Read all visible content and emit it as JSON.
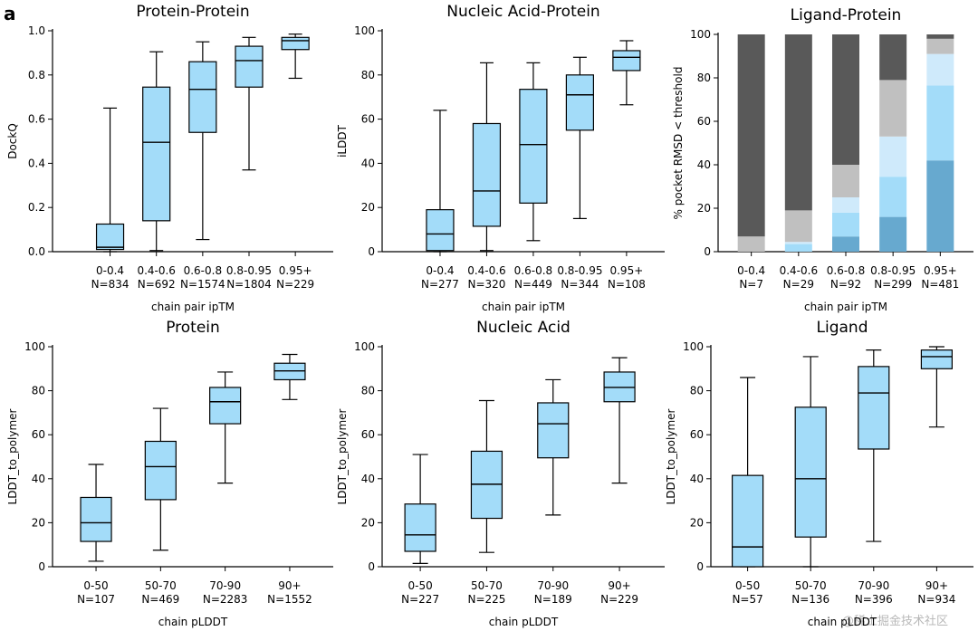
{
  "panel_label": "a",
  "watermark": "@稀土掘金技术社区",
  "colors": {
    "box_fill": "#a3dcf9",
    "edge": "#000000",
    "stack": [
      "#67a9cf",
      "#a3dcf9",
      "#cfeafb",
      "#c0c0c0",
      "#595959"
    ]
  },
  "chart_data": [
    {
      "type": "box",
      "title": "Protein-Protein",
      "xlabel": "chain pair ipTM",
      "ylabel": "DockQ",
      "ylim": [
        0,
        1
      ],
      "yticks": [
        "0.0",
        "0.2",
        "0.4",
        "0.6",
        "0.8",
        "1.0"
      ],
      "categories": [
        "0-0.4",
        "0.4-0.6",
        "0.6-0.8",
        "0.8-0.95",
        "0.95+"
      ],
      "counts": [
        "N=834",
        "N=692",
        "N=1574",
        "N=1804",
        "N=229"
      ],
      "boxes": [
        {
          "whislo": 0.0,
          "q1": 0.01,
          "med": 0.02,
          "q3": 0.125,
          "whishi": 0.65
        },
        {
          "whislo": 0.005,
          "q1": 0.14,
          "med": 0.495,
          "q3": 0.745,
          "whishi": 0.905
        },
        {
          "whislo": 0.055,
          "q1": 0.54,
          "med": 0.735,
          "q3": 0.86,
          "whishi": 0.95
        },
        {
          "whislo": 0.37,
          "q1": 0.745,
          "med": 0.865,
          "q3": 0.93,
          "whishi": 0.97
        },
        {
          "whislo": 0.785,
          "q1": 0.915,
          "med": 0.955,
          "q3": 0.97,
          "whishi": 0.985
        }
      ]
    },
    {
      "type": "box",
      "title": "Nucleic Acid-Protein",
      "xlabel": "chain pair ipTM",
      "ylabel": "iLDDT",
      "ylim": [
        0,
        100
      ],
      "yticks": [
        "0",
        "20",
        "40",
        "60",
        "80",
        "100"
      ],
      "categories": [
        "0-0.4",
        "0.4-0.6",
        "0.6-0.8",
        "0.8-0.95",
        "0.95+"
      ],
      "counts": [
        "N=277",
        "N=320",
        "N=449",
        "N=344",
        "N=108"
      ],
      "boxes": [
        {
          "whislo": 0,
          "q1": 0.5,
          "med": 8,
          "q3": 19,
          "whishi": 64
        },
        {
          "whislo": 0.5,
          "q1": 11.5,
          "med": 27.5,
          "q3": 58,
          "whishi": 85.5
        },
        {
          "whislo": 5,
          "q1": 22,
          "med": 48.5,
          "q3": 73.5,
          "whishi": 85.5
        },
        {
          "whislo": 15,
          "q1": 55,
          "med": 71,
          "q3": 80,
          "whishi": 88
        },
        {
          "whislo": 66.5,
          "q1": 82,
          "med": 88,
          "q3": 91,
          "whishi": 95.5
        }
      ]
    },
    {
      "type": "stacked_bar",
      "title": "Ligand-Protein",
      "xlabel": "chain pair ipTM",
      "ylabel": "% pocket RMSD < threshold",
      "ylim": [
        0,
        100
      ],
      "yticks": [
        "0",
        "20",
        "40",
        "60",
        "80",
        "100"
      ],
      "categories": [
        "0-0.4",
        "0.4-0.6",
        "0.6-0.8",
        "0.8-0.95",
        "0.95+"
      ],
      "counts": [
        "N=7",
        "N=29",
        "N=92",
        "N=299",
        "N=481"
      ],
      "segments": [
        [
          0,
          0,
          0,
          7,
          93
        ],
        [
          0,
          3.5,
          1,
          14.5,
          81
        ],
        [
          7,
          11,
          7,
          15,
          60
        ],
        [
          16,
          18.5,
          18.5,
          26,
          21
        ],
        [
          42,
          34.5,
          14.5,
          7,
          2
        ]
      ]
    },
    {
      "type": "box",
      "title": "Protein",
      "xlabel": "chain pLDDT",
      "ylabel": "LDDT_to_polymer",
      "ylim": [
        0,
        100
      ],
      "yticks": [
        "0",
        "20",
        "40",
        "60",
        "80",
        "100"
      ],
      "categories": [
        "0-50",
        "50-70",
        "70-90",
        "90+"
      ],
      "counts": [
        "N=107",
        "N=469",
        "N=2283",
        "N=1552"
      ],
      "boxes": [
        {
          "whislo": 2.5,
          "q1": 11.5,
          "med": 20,
          "q3": 31.5,
          "whishi": 46.5
        },
        {
          "whislo": 7.5,
          "q1": 30.5,
          "med": 45.5,
          "q3": 57,
          "whishi": 72
        },
        {
          "whislo": 38,
          "q1": 65,
          "med": 75,
          "q3": 81.5,
          "whishi": 88.5
        },
        {
          "whislo": 76,
          "q1": 85,
          "med": 89,
          "q3": 92.5,
          "whishi": 96.5
        }
      ]
    },
    {
      "type": "box",
      "title": "Nucleic Acid",
      "xlabel": "chain pLDDT",
      "ylabel": "LDDT_to_polymer",
      "ylim": [
        0,
        100
      ],
      "yticks": [
        "0",
        "20",
        "40",
        "60",
        "80",
        "100"
      ],
      "categories": [
        "0-50",
        "50-70",
        "70-90",
        "90+"
      ],
      "counts": [
        "N=227",
        "N=225",
        "N=189",
        "N=229"
      ],
      "boxes": [
        {
          "whislo": 1.5,
          "q1": 7,
          "med": 14.5,
          "q3": 28.5,
          "whishi": 51
        },
        {
          "whislo": 6.5,
          "q1": 22,
          "med": 37.5,
          "q3": 52.5,
          "whishi": 75.5
        },
        {
          "whislo": 23.5,
          "q1": 49.5,
          "med": 65,
          "q3": 74.5,
          "whishi": 85
        },
        {
          "whislo": 38,
          "q1": 75,
          "med": 81.5,
          "q3": 88.5,
          "whishi": 95
        }
      ]
    },
    {
      "type": "box",
      "title": "Ligand",
      "xlabel": "chain pLDDT",
      "ylabel": "LDDT_to_polymer",
      "ylim": [
        0,
        100
      ],
      "yticks": [
        "0",
        "20",
        "40",
        "60",
        "80",
        "100"
      ],
      "categories": [
        "0-50",
        "50-70",
        "70-90",
        "90+"
      ],
      "counts": [
        "N=57",
        "N=136",
        "N=396",
        "N=934"
      ],
      "boxes": [
        {
          "whislo": 0,
          "q1": 0,
          "med": 9,
          "q3": 41.5,
          "whishi": 86
        },
        {
          "whislo": 0,
          "q1": 13.5,
          "med": 40,
          "q3": 72.5,
          "whishi": 95.5
        },
        {
          "whislo": 11.5,
          "q1": 53.5,
          "med": 79,
          "q3": 91,
          "whishi": 98.5
        },
        {
          "whislo": 63.5,
          "q1": 90,
          "med": 95.5,
          "q3": 98.5,
          "whishi": 100
        }
      ]
    }
  ]
}
